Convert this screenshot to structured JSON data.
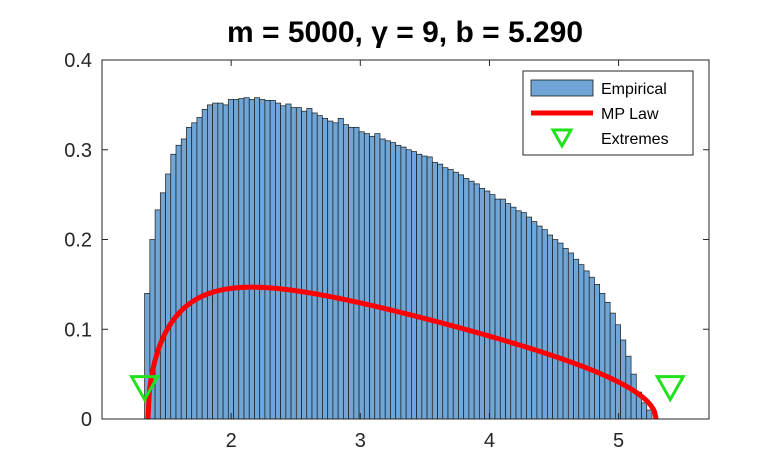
{
  "chart_data": {
    "type": "bar",
    "title": "m  =  5000,    γ  =  9,    b  =  5.290",
    "xlabel": "",
    "ylabel": "",
    "xlim": [
      1.0,
      5.7
    ],
    "ylim": [
      0,
      0.4
    ],
    "x_ticks": [
      2,
      3,
      4,
      5
    ],
    "y_ticks": [
      0,
      0.1,
      0.2,
      0.3,
      0.4
    ],
    "x_tick_labels": [
      "2",
      "3",
      "4",
      "5"
    ],
    "y_tick_labels": [
      "0",
      "0.1",
      "0.2",
      "0.3",
      "0.4"
    ],
    "grid": false,
    "legend": {
      "placement": "top-right",
      "entries": [
        "Empirical",
        "MP Law",
        "Extremes"
      ]
    },
    "colors": {
      "bars": "#70a6d6",
      "bar_edge": "#1a1a1a",
      "mp_law": "#ff0000",
      "extremes": "#22e01e"
    },
    "series": [
      {
        "name": "Empirical",
        "type": "histogram",
        "bin_start": 1.33,
        "bin_width": 0.0405,
        "values": [
          0.14,
          0.2,
          0.233,
          0.252,
          0.273,
          0.295,
          0.305,
          0.312,
          0.325,
          0.33,
          0.336,
          0.345,
          0.35,
          0.352,
          0.352,
          0.35,
          0.356,
          0.356,
          0.357,
          0.358,
          0.356,
          0.358,
          0.356,
          0.355,
          0.355,
          0.352,
          0.349,
          0.351,
          0.347,
          0.347,
          0.343,
          0.346,
          0.341,
          0.338,
          0.335,
          0.332,
          0.33,
          0.335,
          0.328,
          0.325,
          0.325,
          0.32,
          0.318,
          0.315,
          0.318,
          0.312,
          0.31,
          0.308,
          0.305,
          0.303,
          0.3,
          0.298,
          0.295,
          0.293,
          0.292,
          0.286,
          0.284,
          0.28,
          0.278,
          0.275,
          0.272,
          0.268,
          0.265,
          0.262,
          0.257,
          0.254,
          0.25,
          0.245,
          0.245,
          0.24,
          0.236,
          0.232,
          0.23,
          0.225,
          0.22,
          0.215,
          0.211,
          0.205,
          0.2,
          0.196,
          0.19,
          0.185,
          0.178,
          0.172,
          0.165,
          0.158,
          0.15,
          0.14,
          0.13,
          0.118,
          0.105,
          0.088,
          0.07,
          0.05,
          0.03,
          0.018,
          0.01
        ]
      },
      {
        "name": "MP Law",
        "type": "line",
        "a": 1.356,
        "b": 5.29,
        "scale": 0.2
      },
      {
        "name": "Extremes",
        "type": "scatter",
        "x": [
          1.33,
          5.4
        ],
        "y": [
          0.035,
          0.035
        ]
      }
    ]
  }
}
